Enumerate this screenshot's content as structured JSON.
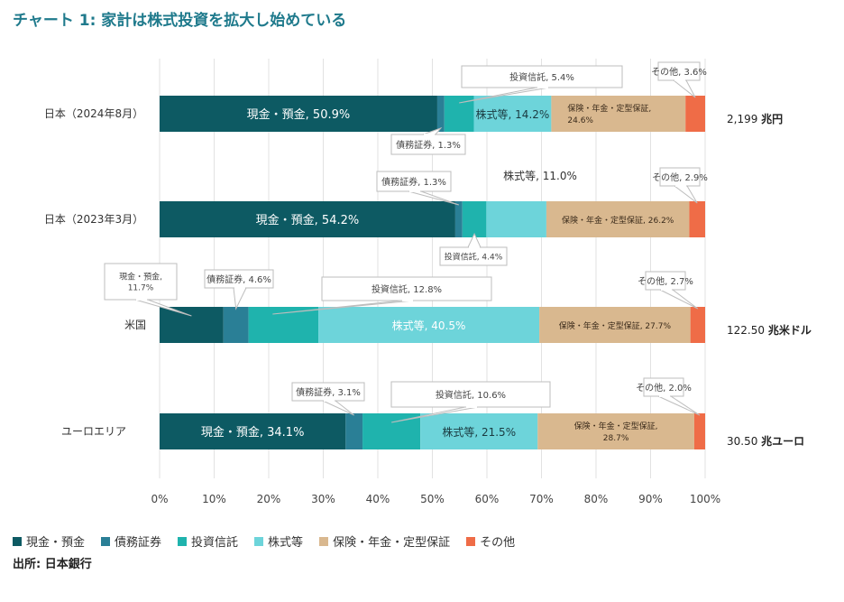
{
  "title": "チャート 1: 家計は株式投資を拡大し始めている",
  "source": "出所: 日本銀行",
  "colors": {
    "cash": "#0d5a63",
    "bonds": "#2a7f96",
    "trusts": "#1fb3ad",
    "stocks": "#6dd4da",
    "insurance": "#d9b88f",
    "other": "#ef6c47"
  },
  "chart_data": {
    "type": "bar",
    "orientation": "horizontal-stacked-100",
    "xlim": [
      0,
      100
    ],
    "x_ticks": [
      "0%",
      "10%",
      "20%",
      "30%",
      "40%",
      "50%",
      "60%",
      "70%",
      "80%",
      "90%",
      "100%"
    ],
    "categories": [
      "日本（2024年8月）",
      "日本（2023年3月）",
      "米国",
      "ユーロエリア"
    ],
    "totals": [
      "2,199 兆円",
      "",
      "122.50 兆米ドル",
      "30.50 兆ユーロ"
    ],
    "series": [
      {
        "key": "cash",
        "name": "現金・預金",
        "values": [
          50.9,
          54.2,
          11.7,
          34.1
        ]
      },
      {
        "key": "bonds",
        "name": "債務証券",
        "values": [
          1.3,
          1.3,
          4.6,
          3.1
        ]
      },
      {
        "key": "trusts",
        "name": "投資信託",
        "values": [
          5.4,
          4.4,
          12.8,
          10.6
        ]
      },
      {
        "key": "stocks",
        "name": "株式等",
        "values": [
          14.2,
          11.0,
          40.5,
          21.5
        ]
      },
      {
        "key": "insurance",
        "name": "保険・年金・定型保証",
        "values": [
          24.6,
          26.2,
          27.7,
          28.7
        ]
      },
      {
        "key": "other",
        "name": "その他",
        "values": [
          3.6,
          2.9,
          2.7,
          2.0
        ]
      }
    ],
    "labels": [
      [
        "現金・預金, 50.9%",
        "債務証券, 1.3%",
        "投資信託, 5.4%",
        "株式等, 14.2%",
        "保険・年金・定型保証, 24.6%",
        "その他, 3.6%"
      ],
      [
        "現金・預金, 54.2%",
        "債務証券, 1.3%",
        "投資信託, 4.4%",
        "株式等, 11.0%",
        "保険・年金・定型保証, 26.2%",
        "その他, 2.9%"
      ],
      [
        "現金・預金, 11.7%",
        "債務証券, 4.6%",
        "投資信託, 12.8%",
        "株式等, 40.5%",
        "保険・年金・定型保証, 27.7%",
        "その他, 2.7%"
      ],
      [
        "現金・預金, 34.1%",
        "債務証券, 3.1%",
        "投資信託, 10.6%",
        "株式等, 21.5%",
        "保険・年金・定型保証, 28.7%",
        "その他, 2.0%"
      ]
    ],
    "legend": [
      "現金・預金",
      "債務証券",
      "投資信託",
      "株式等",
      "保険・年金・定型保証",
      "その他"
    ],
    "legend_position": "bottom",
    "grid": true
  }
}
